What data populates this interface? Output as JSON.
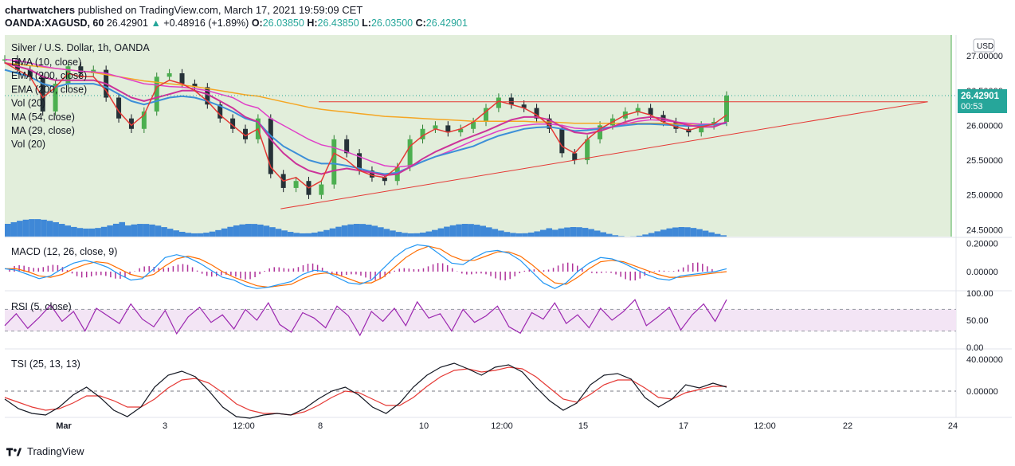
{
  "header": {
    "author": "chartwatchers",
    "published": "published on TradingView.com, March 17, 2021 19:59:09 CET",
    "symbol": "OANDA:XAGUSD, 60",
    "last": "26.42901",
    "arrow": "▲",
    "change": "+0.48916 (+1.89%)",
    "o_key": "O:",
    "o_val": "26.03850",
    "h_key": "H:",
    "h_val": "26.43850",
    "l_key": "L:",
    "l_val": "26.03500",
    "c_key": "C:",
    "c_val": "26.42901"
  },
  "footer": {
    "brand": "TradingView"
  },
  "colors": {
    "up": "#26a69a",
    "down": "#ef5350",
    "bg_zone": "#e2eedb",
    "ema10": "#e53935",
    "ema50": "#3d8fd8",
    "ema200": "#f5a623",
    "ma54": "#e040c8",
    "ma29": "#cc3399",
    "vol": "#2e7cd6",
    "rsi_band": "#f3e5f5",
    "rsi_line": "#9c27b0",
    "macd": "#2196f3",
    "signal": "#ff6d00",
    "hist": "#b0339a",
    "tsi": "#131722",
    "tsi_sig": "#e53935"
  },
  "chart_data": [
    {
      "type": "candlestick",
      "title": "Silver / U.S. Dollar, 1h, OANDA",
      "legend": [
        "EMA (10, close)",
        "EMA (200, close)",
        "EMA (200, close)",
        "Vol (20)",
        "MA (54, close)",
        "MA (29, close)",
        "Vol (20)"
      ],
      "currency": "USD",
      "price_axis_ticks": [
        "27.00000",
        "26.50000",
        "26.00000",
        "25.50000",
        "25.00000",
        "24.50000"
      ],
      "ylim": [
        24.4,
        27.3
      ],
      "last_price_label": "26.42901",
      "countdown": "00:53",
      "x_labels": [
        "Mar",
        "3",
        "12:00",
        "8",
        "10",
        "12:00",
        "15",
        "17",
        "12:00",
        "22",
        "24"
      ],
      "close_path": [
        26.95,
        26.8,
        26.7,
        26.2,
        26.6,
        26.85,
        26.75,
        26.8,
        26.4,
        26.1,
        25.95,
        26.2,
        26.7,
        26.75,
        26.6,
        26.55,
        26.3,
        26.1,
        25.95,
        25.8,
        26.1,
        25.3,
        25.1,
        25.2,
        25.0,
        25.15,
        25.8,
        25.6,
        25.35,
        25.25,
        25.2,
        25.4,
        25.8,
        25.95,
        26.0,
        25.9,
        25.95,
        26.05,
        26.25,
        26.4,
        26.3,
        26.25,
        26.1,
        25.95,
        25.6,
        25.5,
        25.8,
        26.0,
        26.1,
        26.2,
        26.25,
        26.15,
        26.05,
        25.95,
        25.9,
        26.0,
        26.05,
        26.43
      ],
      "overlays": {
        "ema10": [
          26.9,
          26.8,
          26.7,
          26.4,
          26.55,
          26.75,
          26.7,
          26.7,
          26.5,
          26.2,
          26.0,
          26.15,
          26.55,
          26.65,
          26.6,
          26.5,
          26.35,
          26.15,
          26.0,
          25.85,
          25.95,
          25.4,
          25.2,
          25.25,
          25.1,
          25.2,
          25.6,
          25.5,
          25.35,
          25.28,
          25.25,
          25.4,
          25.7,
          25.85,
          25.95,
          25.9,
          25.95,
          26.05,
          26.2,
          26.35,
          26.3,
          26.25,
          26.15,
          26.0,
          25.7,
          25.6,
          25.8,
          25.95,
          26.05,
          26.15,
          26.2,
          26.15,
          26.05,
          25.98,
          25.93,
          25.98,
          26.02,
          26.15
        ],
        "ema50": [
          26.8,
          26.75,
          26.7,
          26.6,
          26.55,
          26.6,
          26.6,
          26.6,
          26.55,
          26.45,
          26.35,
          26.3,
          26.35,
          26.4,
          26.42,
          26.4,
          26.35,
          26.28,
          26.2,
          26.1,
          26.05,
          25.85,
          25.7,
          25.6,
          25.5,
          25.45,
          25.45,
          25.42,
          25.38,
          25.33,
          25.3,
          25.32,
          25.4,
          25.48,
          25.55,
          25.6,
          25.65,
          25.7,
          25.78,
          25.85,
          25.9,
          25.95,
          25.97,
          25.98,
          25.95,
          25.92,
          25.93,
          25.95,
          25.98,
          26.0,
          26.02,
          26.02,
          26.01,
          26.0,
          25.99,
          26.0,
          26.01,
          26.03
        ],
        "ema200": [
          26.9,
          26.88,
          26.86,
          26.84,
          26.82,
          26.8,
          26.78,
          26.76,
          26.73,
          26.7,
          26.67,
          26.64,
          26.62,
          26.6,
          26.58,
          26.56,
          26.53,
          26.5,
          26.47,
          26.44,
          26.42,
          26.38,
          26.34,
          26.3,
          26.26,
          26.23,
          26.21,
          26.19,
          26.17,
          26.15,
          26.13,
          26.12,
          26.11,
          26.1,
          26.09,
          26.08,
          26.07,
          26.06,
          26.06,
          26.06,
          26.06,
          26.06,
          26.05,
          26.05,
          26.04,
          26.03,
          26.03,
          26.03,
          26.03,
          26.03,
          26.03,
          26.03,
          26.03,
          26.02,
          26.02,
          26.02,
          26.02,
          26.03
        ],
        "ma54": [
          26.95,
          26.93,
          26.9,
          26.85,
          26.82,
          26.8,
          26.78,
          26.77,
          26.75,
          26.7,
          26.65,
          26.6,
          26.58,
          26.56,
          26.55,
          26.53,
          26.5,
          26.45,
          26.4,
          26.3,
          26.25,
          26.1,
          26.0,
          25.9,
          25.8,
          25.72,
          25.68,
          25.62,
          25.55,
          25.48,
          25.42,
          25.4,
          25.42,
          25.48,
          25.55,
          25.62,
          25.7,
          25.78,
          25.85,
          25.92,
          25.97,
          26.0,
          26.02,
          26.02,
          26.0,
          25.96,
          25.95,
          25.96,
          25.98,
          26.02,
          26.06,
          26.08,
          26.07,
          26.05,
          26.03,
          26.02,
          26.02,
          26.04
        ],
        "ma29": [
          26.9,
          26.85,
          26.8,
          26.7,
          26.65,
          26.65,
          26.65,
          26.65,
          26.6,
          26.5,
          26.4,
          26.35,
          26.4,
          26.45,
          26.5,
          26.5,
          26.45,
          26.35,
          26.25,
          26.12,
          26.05,
          25.8,
          25.6,
          25.45,
          25.35,
          25.3,
          25.35,
          25.38,
          25.35,
          25.32,
          25.28,
          25.3,
          25.4,
          25.52,
          25.62,
          25.7,
          25.78,
          25.85,
          25.92,
          26.0,
          26.08,
          26.12,
          26.12,
          26.08,
          25.98,
          25.9,
          25.88,
          25.92,
          25.98,
          26.05,
          26.1,
          26.12,
          26.1,
          26.05,
          26.0,
          25.98,
          25.98,
          26.05
        ]
      },
      "trendlines": [
        {
          "name": "resistance",
          "from": [
            0.33,
            26.34
          ],
          "to": [
            0.92,
            26.34
          ]
        },
        {
          "name": "support",
          "from": [
            0.29,
            24.8
          ],
          "to": [
            0.92,
            26.34
          ]
        }
      ]
    },
    {
      "type": "line",
      "title": "MACD (12, 26, close, 9)",
      "ticks": [
        "0.20000",
        "0.00000"
      ],
      "ylim": [
        -0.13,
        0.22
      ],
      "macd": [
        0.02,
        0.01,
        -0.02,
        -0.05,
        -0.03,
        0.02,
        0.06,
        0.08,
        0.06,
        0.03,
        -0.02,
        -0.06,
        -0.05,
        0.02,
        0.1,
        0.12,
        0.1,
        0.06,
        0.01,
        -0.04,
        -0.06,
        -0.1,
        -0.12,
        -0.11,
        -0.09,
        -0.07,
        -0.02,
        0.01,
        0.0,
        -0.04,
        -0.08,
        -0.09,
        -0.06,
        0.02,
        0.1,
        0.16,
        0.19,
        0.18,
        0.12,
        0.06,
        0.05,
        0.1,
        0.14,
        0.15,
        0.13,
        0.08,
        0.0,
        -0.08,
        -0.12,
        -0.08,
        0.0,
        0.06,
        0.1,
        0.09,
        0.06,
        0.02,
        -0.02,
        -0.05,
        -0.06,
        -0.03,
        -0.02,
        -0.01,
        0.0,
        0.02
      ],
      "signal": [
        0.02,
        0.02,
        0.0,
        -0.03,
        -0.04,
        -0.02,
        0.02,
        0.05,
        0.07,
        0.06,
        0.02,
        -0.02,
        -0.04,
        -0.02,
        0.04,
        0.09,
        0.11,
        0.09,
        0.05,
        0.0,
        -0.04,
        -0.07,
        -0.1,
        -0.11,
        -0.1,
        -0.09,
        -0.05,
        -0.02,
        -0.01,
        -0.02,
        -0.05,
        -0.08,
        -0.08,
        -0.04,
        0.03,
        0.1,
        0.15,
        0.18,
        0.16,
        0.11,
        0.08,
        0.08,
        0.11,
        0.14,
        0.14,
        0.11,
        0.05,
        -0.02,
        -0.08,
        -0.09,
        -0.04,
        0.02,
        0.07,
        0.08,
        0.07,
        0.04,
        0.01,
        -0.02,
        -0.04,
        -0.04,
        -0.03,
        -0.02,
        -0.01,
        0.0
      ]
    },
    {
      "type": "line",
      "title": "RSI (5, close)",
      "ticks": [
        "100.00",
        "50.00",
        "0.00"
      ],
      "ylim": [
        0,
        100
      ],
      "band": [
        30,
        70
      ],
      "values": [
        40,
        62,
        35,
        55,
        78,
        48,
        66,
        30,
        72,
        58,
        44,
        80,
        52,
        38,
        68,
        25,
        56,
        74,
        46,
        60,
        34,
        70,
        50,
        82,
        42,
        28,
        64,
        54,
        36,
        76,
        58,
        22,
        66,
        48,
        72,
        40,
        84,
        54,
        62,
        30,
        70,
        46,
        58,
        76,
        38,
        26,
        64,
        52,
        82,
        44,
        60,
        36,
        72,
        50,
        66,
        88,
        40,
        56,
        74,
        32,
        60,
        80,
        48,
        88
      ]
    },
    {
      "type": "line",
      "title": "TSI (25, 13, 13)",
      "ticks": [
        "40.00000",
        "0.00000"
      ],
      "ylim": [
        -32,
        50
      ],
      "tsi": [
        -10,
        -22,
        -28,
        -30,
        -20,
        -5,
        5,
        -8,
        -24,
        -32,
        -20,
        5,
        20,
        25,
        18,
        0,
        -20,
        -32,
        -34,
        -30,
        -28,
        -30,
        -22,
        -10,
        0,
        5,
        -5,
        -20,
        -28,
        -15,
        5,
        20,
        30,
        35,
        28,
        20,
        30,
        33,
        24,
        5,
        -12,
        -24,
        -15,
        8,
        20,
        22,
        15,
        -8,
        -20,
        -10,
        8,
        4,
        10,
        5
      ],
      "tsi_signal": [
        -8,
        -14,
        -20,
        -24,
        -22,
        -15,
        -6,
        -6,
        -12,
        -20,
        -20,
        -10,
        4,
        14,
        16,
        10,
        -2,
        -16,
        -24,
        -28,
        -28,
        -30,
        -26,
        -18,
        -8,
        0,
        -2,
        -10,
        -18,
        -18,
        -8,
        6,
        18,
        26,
        28,
        24,
        26,
        30,
        28,
        18,
        4,
        -10,
        -14,
        -4,
        8,
        14,
        14,
        4,
        -8,
        -10,
        -2,
        2,
        6,
        6
      ]
    }
  ]
}
